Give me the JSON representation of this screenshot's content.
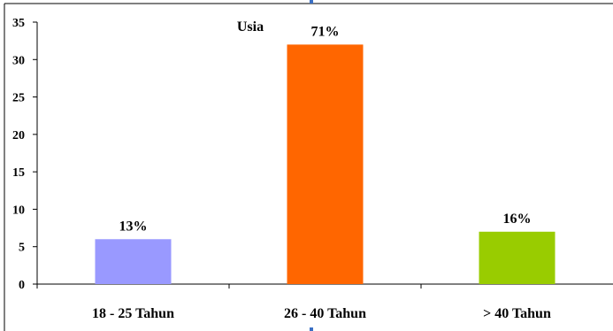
{
  "chart_data": {
    "type": "bar",
    "title": "Usia",
    "categories": [
      "18 - 25 Tahun",
      "26 - 40 Tahun",
      "> 40 Tahun"
    ],
    "values": [
      6,
      32,
      7
    ],
    "data_labels": [
      "13%",
      "71%",
      "16%"
    ],
    "colors": [
      "#9999ff",
      "#ff6600",
      "#99cc00"
    ],
    "ylim": [
      0,
      35
    ],
    "yticks": [
      "0",
      "5",
      "10",
      "15",
      "20",
      "25",
      "30",
      "35"
    ],
    "grid": false,
    "legend": "none"
  }
}
